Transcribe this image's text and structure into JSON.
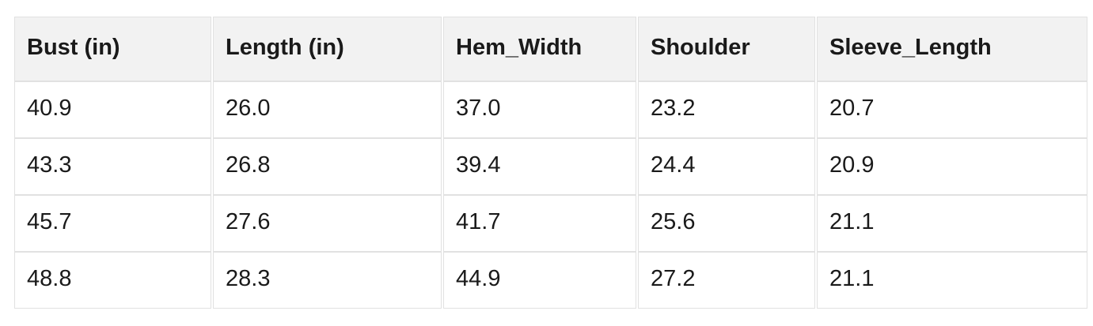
{
  "chart_data": {
    "type": "table",
    "title": "",
    "columns": [
      "Bust (in)",
      "Length (in)",
      "Hem_Width",
      "Shoulder",
      "Sleeve_Length"
    ],
    "rows": [
      [
        "40.9",
        "26.0",
        "37.0",
        "23.2",
        "20.7"
      ],
      [
        "43.3",
        "26.8",
        "39.4",
        "24.4",
        "20.9"
      ],
      [
        "45.7",
        "27.6",
        "41.7",
        "25.6",
        "21.1"
      ],
      [
        "48.8",
        "28.3",
        "44.9",
        "27.2",
        "21.1"
      ]
    ]
  },
  "colors": {
    "header_background": "#f2f2f2",
    "cell_background": "#ffffff",
    "border": "#e1e1e1",
    "text": "#1a1a1a",
    "page_background": "#ffffff"
  }
}
